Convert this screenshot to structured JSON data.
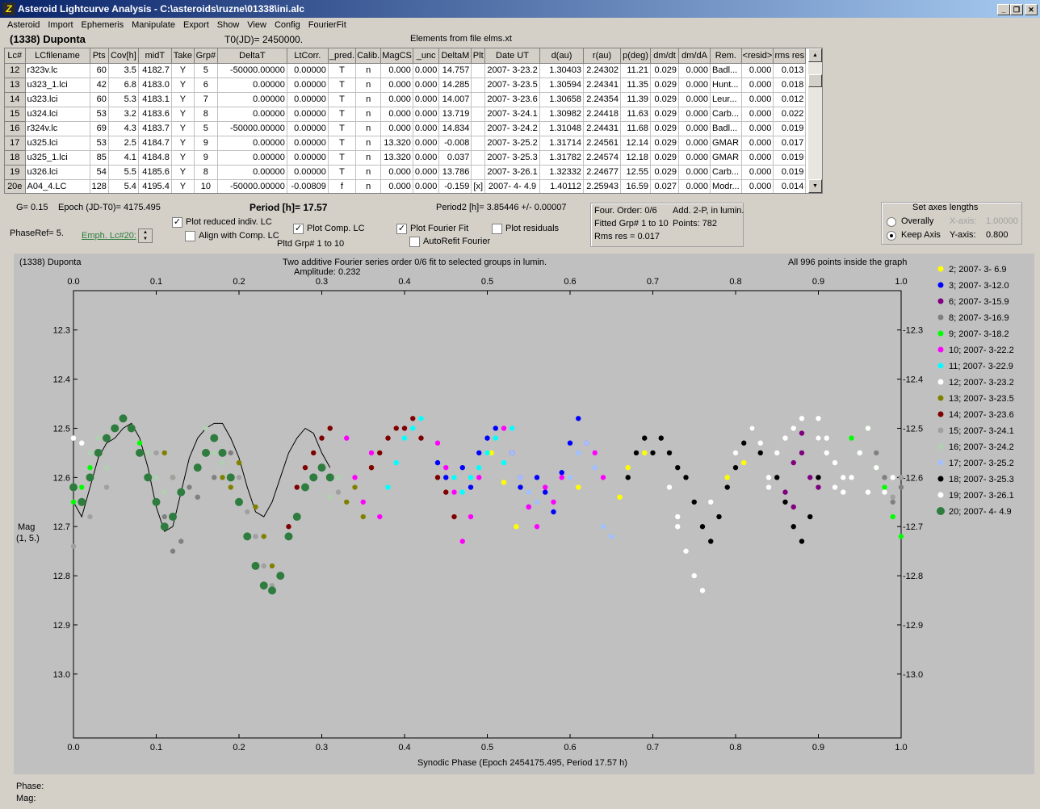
{
  "window": {
    "title": "Asteroid Lightcurve Analysis - C:\\asteroids\\ruzne\\01338\\ini.alc",
    "icon": "asteroid-app-icon"
  },
  "menu": [
    "Asteroid",
    "Import",
    "Ephemeris",
    "Manipulate",
    "Export",
    "Show",
    "View",
    "Config",
    "FourierFit"
  ],
  "header": {
    "asteroid": "(1338) Duponta",
    "t0": "T0(JD)= 2450000.",
    "elements": "Elements from file elms.xt"
  },
  "table": {
    "columns": [
      "Lc#",
      "LCfilename",
      "Pts",
      "Cov[h]",
      "midT",
      "Take",
      "Grp#",
      "DeltaT",
      "LtCorr.",
      "_pred.",
      "Calib.",
      "MagCS",
      "_unc",
      "DeltaM",
      "Plt",
      "Date UT",
      "d(au)",
      "r(au)",
      "p(deg)",
      "dm/dt",
      "dm/dA",
      "Rem.",
      "<resid>",
      "rms res"
    ],
    "rows": [
      [
        "12",
        "r323v.lc",
        "60",
        "3.5",
        "4182.7",
        "Y",
        "5",
        "-50000.00000",
        "0.00000",
        "T",
        "n",
        "0.000",
        "0.000",
        "14.757",
        "",
        "2007- 3-23.2",
        "1.30403",
        "2.24302",
        "11.21",
        "0.029",
        "0.000",
        "Badl...",
        "0.000",
        "0.013"
      ],
      [
        "13",
        "u323_1.lci",
        "42",
        "6.8",
        "4183.0",
        "Y",
        "6",
        "0.00000",
        "0.00000",
        "T",
        "n",
        "0.000",
        "0.000",
        "14.285",
        "",
        "2007- 3-23.5",
        "1.30594",
        "2.24341",
        "11.35",
        "0.029",
        "0.000",
        "Hunt...",
        "0.000",
        "0.018"
      ],
      [
        "14",
        "u323.lci",
        "60",
        "5.3",
        "4183.1",
        "Y",
        "7",
        "0.00000",
        "0.00000",
        "T",
        "n",
        "0.000",
        "0.000",
        "14.007",
        "",
        "2007- 3-23.6",
        "1.30658",
        "2.24354",
        "11.39",
        "0.029",
        "0.000",
        "Leur...",
        "0.000",
        "0.012"
      ],
      [
        "15",
        "u324.lci",
        "53",
        "3.2",
        "4183.6",
        "Y",
        "8",
        "0.00000",
        "0.00000",
        "T",
        "n",
        "0.000",
        "0.000",
        "13.719",
        "",
        "2007- 3-24.1",
        "1.30982",
        "2.24418",
        "11.63",
        "0.029",
        "0.000",
        "Carb...",
        "0.000",
        "0.022"
      ],
      [
        "16",
        "r324v.lc",
        "69",
        "4.3",
        "4183.7",
        "Y",
        "5",
        "-50000.00000",
        "0.00000",
        "T",
        "n",
        "0.000",
        "0.000",
        "14.834",
        "",
        "2007- 3-24.2",
        "1.31048",
        "2.24431",
        "11.68",
        "0.029",
        "0.000",
        "Badl...",
        "0.000",
        "0.019"
      ],
      [
        "17",
        "u325.lci",
        "53",
        "2.5",
        "4184.7",
        "Y",
        "9",
        "0.00000",
        "0.00000",
        "T",
        "n",
        "13.320",
        "0.000",
        "-0.008",
        "",
        "2007- 3-25.2",
        "1.31714",
        "2.24561",
        "12.14",
        "0.029",
        "0.000",
        "GMAR",
        "0.000",
        "0.017"
      ],
      [
        "18",
        "u325_1.lci",
        "85",
        "4.1",
        "4184.8",
        "Y",
        "9",
        "0.00000",
        "0.00000",
        "T",
        "n",
        "13.320",
        "0.000",
        "0.037",
        "",
        "2007- 3-25.3",
        "1.31782",
        "2.24574",
        "12.18",
        "0.029",
        "0.000",
        "GMAR",
        "0.000",
        "0.019"
      ],
      [
        "19",
        "u326.lci",
        "54",
        "5.5",
        "4185.6",
        "Y",
        "8",
        "0.00000",
        "0.00000",
        "T",
        "n",
        "0.000",
        "0.000",
        "13.786",
        "",
        "2007- 3-26.1",
        "1.32332",
        "2.24677",
        "12.55",
        "0.029",
        "0.000",
        "Carb...",
        "0.000",
        "0.019"
      ],
      [
        "20e",
        "A04_4.LC",
        "128",
        "5.4",
        "4195.4",
        "Y",
        "10",
        "-50000.00000",
        "-0.00809",
        "f",
        "n",
        "0.000",
        "0.000",
        "-0.159",
        "[x]",
        "2007- 4- 4.9",
        "1.40112",
        "2.25943",
        "16.59",
        "0.027",
        "0.000",
        "Modr...",
        "0.000",
        "0.014"
      ]
    ]
  },
  "controls": {
    "g": "G= 0.15",
    "epoch": "Epoch (JD-T0)= 4175.495",
    "period_label": "Period [h]= 17.57",
    "period2": "Period2 [h]= 3.85446 +/- 0.00007",
    "phaseref": "PhaseRef= 5.",
    "emph": "Emph. Lc#20:",
    "plot_reduced": "Plot reduced indiv. LC",
    "align_comp": "Align with Comp. LC",
    "plot_comp": "Plot Comp. LC",
    "pltd_grp": "Pltd Grp#   1   to   10",
    "plot_fourier": "Plot Fourier Fit",
    "autorefit": "AutoRefit Fourier",
    "plot_residuals": "Plot residuals",
    "four_order": "Four. Order:  0/6",
    "add_2p": "Add. 2-P, in lumin.",
    "fitted_grp": "Fitted Grp# 1 to 10",
    "points": "Points: 782",
    "rms": "Rms res      = 0.017",
    "axes_title": "Set axes lengths",
    "overally": "Overally",
    "keep_axis": "Keep Axis",
    "xaxis_label": "X-axis:",
    "xaxis_val": "1.00000",
    "yaxis_label": "Y-axis:",
    "yaxis_val": "0.800"
  },
  "plot": {
    "name": "(1338) Duponta",
    "subtitle": "Two additive Fourier series order 0/6 fit to selected groups in lumin.",
    "amplitude": "Amplitude: 0.232",
    "inside": "All 996 points inside the graph",
    "ylabel1": "Mag",
    "ylabel2": "(1, 5.)",
    "xlabel": "Synodic Phase (Epoch 2454175.495, Period 17.57 h)"
  },
  "chart_data": {
    "type": "scatter",
    "xlim": [
      0,
      1
    ],
    "ylim": [
      13.13,
      12.22
    ],
    "y_reversed": true,
    "xticks": [
      "0.0",
      "0.1",
      "0.2",
      "0.3",
      "0.4",
      "0.5",
      "0.6",
      "0.7",
      "0.8",
      "0.9",
      "1.0"
    ],
    "yticks": [
      "12.3",
      "12.4",
      "12.5",
      "12.6",
      "12.7",
      "12.8",
      "12.9",
      "13.0"
    ],
    "series": [
      {
        "name": "2; 2007- 3- 6.9",
        "color": "#ffff00",
        "x": [
          0.505,
          0.52,
          0.535,
          0.61,
          0.66,
          0.67,
          0.69,
          0.81,
          0.79
        ],
        "y": [
          12.55,
          12.61,
          12.7,
          12.62,
          12.64,
          12.58,
          12.55,
          12.57,
          12.6
        ]
      },
      {
        "name": "3; 2007- 3-12.0",
        "color": "#0000ff",
        "x": [
          0.45,
          0.47,
          0.48,
          0.49,
          0.5,
          0.51,
          0.53,
          0.54,
          0.55,
          0.57,
          0.58,
          0.59,
          0.6,
          0.61,
          0.44,
          0.56
        ],
        "y": [
          12.6,
          12.58,
          12.62,
          12.55,
          12.52,
          12.5,
          12.55,
          12.62,
          12.66,
          12.63,
          12.67,
          12.59,
          12.53,
          12.48,
          12.57,
          12.6
        ]
      },
      {
        "name": "6; 2007- 3-15.9",
        "color": "#800080",
        "x": [
          0.87,
          0.88,
          0.89,
          0.9,
          0.88,
          0.86,
          0.87,
          0.9
        ],
        "y": [
          12.57,
          12.55,
          12.6,
          12.62,
          12.51,
          12.63,
          12.66,
          12.52
        ]
      },
      {
        "name": "8; 2007- 3-16.9",
        "color": "#808080",
        "x": [
          0.11,
          0.13,
          0.15,
          0.17,
          0.2,
          0.12,
          0.14,
          0.19,
          0.97,
          0.98,
          0.99,
          1.0
        ],
        "y": [
          12.68,
          12.73,
          12.64,
          12.6,
          12.57,
          12.75,
          12.62,
          12.55,
          12.55,
          12.6,
          12.65,
          12.62
        ]
      },
      {
        "name": "9; 2007- 3-18.2",
        "color": "#00ff00",
        "x": [
          0.0,
          0.01,
          0.02,
          0.03,
          0.04,
          0.05,
          0.06,
          0.07,
          0.08,
          0.94,
          0.95,
          0.96,
          0.97,
          0.98,
          0.99,
          1.0
        ],
        "y": [
          12.65,
          12.62,
          12.58,
          12.55,
          12.52,
          12.5,
          12.48,
          12.5,
          12.53,
          12.52,
          12.55,
          12.5,
          12.58,
          12.62,
          12.68,
          12.72
        ]
      },
      {
        "name": "10; 2007- 3-22.2",
        "color": "#ff00ff",
        "x": [
          0.33,
          0.34,
          0.35,
          0.36,
          0.37,
          0.44,
          0.45,
          0.46,
          0.47,
          0.48,
          0.49,
          0.52,
          0.53,
          0.54,
          0.55,
          0.56,
          0.57,
          0.58,
          0.59,
          0.62,
          0.63,
          0.64
        ],
        "y": [
          12.52,
          12.6,
          12.65,
          12.55,
          12.68,
          12.53,
          12.58,
          12.63,
          12.73,
          12.68,
          12.6,
          12.5,
          12.55,
          12.6,
          12.66,
          12.7,
          12.62,
          12.65,
          12.6,
          12.53,
          12.55,
          12.6
        ]
      },
      {
        "name": "11; 2007- 3-22.9",
        "color": "#00ffff",
        "x": [
          0.38,
          0.39,
          0.4,
          0.41,
          0.42,
          0.46,
          0.47,
          0.48,
          0.49,
          0.5,
          0.51,
          0.52,
          0.53
        ],
        "y": [
          12.62,
          12.57,
          12.52,
          12.5,
          12.48,
          12.6,
          12.63,
          12.6,
          12.58,
          12.55,
          12.52,
          12.57,
          12.5
        ]
      },
      {
        "name": "12; 2007- 3-23.2",
        "color": "#ffffff",
        "x": [
          0.0,
          0.01,
          0.74,
          0.75,
          0.76,
          0.73,
          0.77,
          0.84,
          0.85,
          0.86,
          0.87,
          0.9,
          0.91,
          0.92,
          0.93,
          0.95,
          0.96,
          0.88
        ],
        "y": [
          12.52,
          12.53,
          12.75,
          12.8,
          12.83,
          12.7,
          12.65,
          12.6,
          12.55,
          12.52,
          12.5,
          12.52,
          12.55,
          12.62,
          12.6,
          12.55,
          12.63,
          12.48
        ]
      },
      {
        "name": "13; 2007- 3-23.5",
        "color": "#808000",
        "x": [
          0.11,
          0.12,
          0.18,
          0.19,
          0.2,
          0.22,
          0.23,
          0.24,
          0.33,
          0.34,
          0.35,
          0.36
        ],
        "y": [
          12.55,
          12.6,
          12.6,
          12.62,
          12.57,
          12.66,
          12.72,
          12.78,
          12.65,
          12.62,
          12.68,
          12.58
        ]
      },
      {
        "name": "14; 2007- 3-23.6",
        "color": "#800000",
        "x": [
          0.27,
          0.28,
          0.29,
          0.3,
          0.31,
          0.26,
          0.36,
          0.37,
          0.38,
          0.39,
          0.4,
          0.41,
          0.42,
          0.44,
          0.45,
          0.46
        ],
        "y": [
          12.62,
          12.58,
          12.55,
          12.52,
          12.5,
          12.7,
          12.58,
          12.55,
          12.52,
          12.5,
          12.5,
          12.48,
          12.52,
          12.6,
          12.63,
          12.68
        ]
      },
      {
        "name": "15; 2007- 3-24.1",
        "color": "#a0a0a0",
        "x": [
          0.0,
          0.02,
          0.04,
          0.1,
          0.12,
          0.2,
          0.21,
          0.22,
          0.23,
          0.24,
          0.32,
          0.99,
          1.0
        ],
        "y": [
          12.74,
          12.68,
          12.62,
          12.55,
          12.6,
          12.6,
          12.67,
          12.72,
          12.78,
          12.82,
          12.63,
          12.64,
          12.6
        ]
      },
      {
        "name": "16; 2007- 3-24.2",
        "color": "#b0d0b0",
        "x": [
          0.02,
          0.03,
          0.04,
          0.09,
          0.1,
          0.11,
          0.16,
          0.17,
          0.18,
          0.31,
          0.32
        ],
        "y": [
          12.55,
          12.52,
          12.58,
          12.55,
          12.6,
          12.63,
          12.5,
          12.55,
          12.57,
          12.64,
          12.6
        ]
      },
      {
        "name": "17; 2007- 3-25.2",
        "color": "#a0c0ff",
        "x": [
          0.53,
          0.54,
          0.55,
          0.56,
          0.6,
          0.61,
          0.62,
          0.63,
          0.64,
          0.65
        ],
        "y": [
          12.55,
          12.6,
          12.63,
          12.65,
          12.6,
          12.55,
          12.53,
          12.58,
          12.7,
          12.72
        ]
      },
      {
        "name": "18; 2007- 3-25.3",
        "color": "#000000",
        "x": [
          0.67,
          0.68,
          0.69,
          0.7,
          0.71,
          0.72,
          0.73,
          0.74,
          0.75,
          0.76,
          0.77,
          0.78,
          0.79,
          0.8,
          0.81,
          0.82,
          0.83,
          0.85,
          0.86,
          0.87,
          0.88,
          0.89,
          0.9
        ],
        "y": [
          12.6,
          12.55,
          12.52,
          12.55,
          12.52,
          12.55,
          12.58,
          12.6,
          12.65,
          12.7,
          12.73,
          12.68,
          12.62,
          12.58,
          12.53,
          12.5,
          12.55,
          12.6,
          12.65,
          12.7,
          12.73,
          12.68,
          12.6
        ]
      },
      {
        "name": "19; 2007- 3-26.1",
        "color": "#ffffff",
        "x": [
          0.72,
          0.73,
          0.8,
          0.82,
          0.83,
          0.84,
          0.9,
          0.91,
          0.92,
          0.93,
          0.94,
          0.95,
          0.96,
          0.97,
          0.98,
          0.99
        ],
        "y": [
          12.62,
          12.68,
          12.55,
          12.5,
          12.53,
          12.62,
          12.48,
          12.52,
          12.57,
          12.63,
          12.6,
          12.55,
          12.5,
          12.58,
          12.63,
          12.6
        ]
      },
      {
        "name": "20; 2007- 4- 4.9",
        "color": "#2e7d3f",
        "x": [
          0.0,
          0.01,
          0.02,
          0.03,
          0.04,
          0.05,
          0.06,
          0.07,
          0.08,
          0.09,
          0.1,
          0.11,
          0.12,
          0.13,
          0.15,
          0.16,
          0.17,
          0.18,
          0.19,
          0.2,
          0.21,
          0.22,
          0.23,
          0.24,
          0.25,
          0.26,
          0.27,
          0.28,
          0.29,
          0.3,
          0.31
        ],
        "y": [
          12.62,
          12.65,
          12.6,
          12.55,
          12.52,
          12.5,
          12.48,
          12.5,
          12.55,
          12.6,
          12.65,
          12.7,
          12.68,
          12.63,
          12.58,
          12.55,
          12.52,
          12.55,
          12.6,
          12.65,
          12.72,
          12.78,
          12.82,
          12.83,
          12.8,
          12.72,
          12.68,
          12.62,
          12.6,
          12.58,
          12.6
        ]
      }
    ],
    "fit_curve": {
      "name": "Fourier fit",
      "x": [
        0.0,
        0.01,
        0.02,
        0.03,
        0.04,
        0.05,
        0.06,
        0.07,
        0.08,
        0.09,
        0.1,
        0.11,
        0.12,
        0.13,
        0.14,
        0.15,
        0.16,
        0.17,
        0.18,
        0.19,
        0.2,
        0.21,
        0.22,
        0.23,
        0.24,
        0.25,
        0.26,
        0.27,
        0.28,
        0.29,
        0.3,
        0.31
      ],
      "y": [
        12.65,
        12.68,
        12.62,
        12.56,
        12.53,
        12.52,
        12.5,
        12.49,
        12.52,
        12.58,
        12.66,
        12.71,
        12.7,
        12.63,
        12.56,
        12.52,
        12.5,
        12.49,
        12.49,
        12.52,
        12.56,
        12.62,
        12.67,
        12.68,
        12.65,
        12.6,
        12.55,
        12.52,
        12.5,
        12.51,
        12.55,
        12.58
      ]
    }
  }
}
